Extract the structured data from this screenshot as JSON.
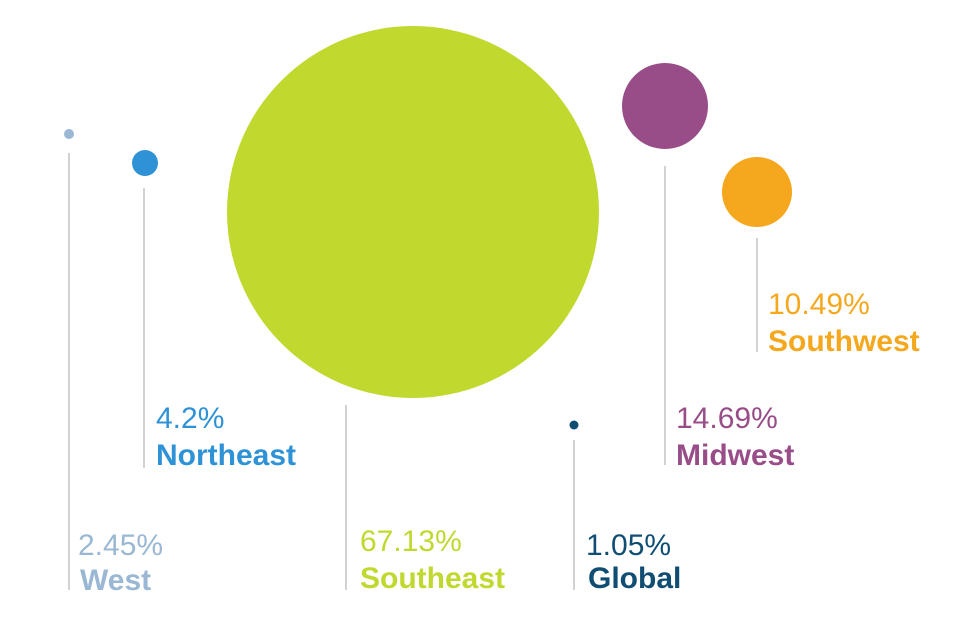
{
  "chart_data": {
    "type": "bubble",
    "unit": "%",
    "items": [
      {
        "key": "west",
        "name": "West",
        "value": 2.45,
        "value_label": "2.45%",
        "color": "#9ab8d3"
      },
      {
        "key": "northeast",
        "name": "Northeast",
        "value": 4.2,
        "value_label": "4.2%",
        "color": "#3092d6"
      },
      {
        "key": "southeast",
        "name": "Southeast",
        "value": 67.13,
        "value_label": "67.13%",
        "color": "#c1d82f"
      },
      {
        "key": "global",
        "name": "Global",
        "value": 1.05,
        "value_label": "1.05%",
        "color": "#0f4d73"
      },
      {
        "key": "midwest",
        "name": "Midwest",
        "value": 14.69,
        "value_label": "14.69%",
        "color": "#994d88"
      },
      {
        "key": "southwest",
        "name": "Southwest",
        "value": 10.49,
        "value_label": "10.49%",
        "color": "#f5a81d"
      }
    ]
  }
}
